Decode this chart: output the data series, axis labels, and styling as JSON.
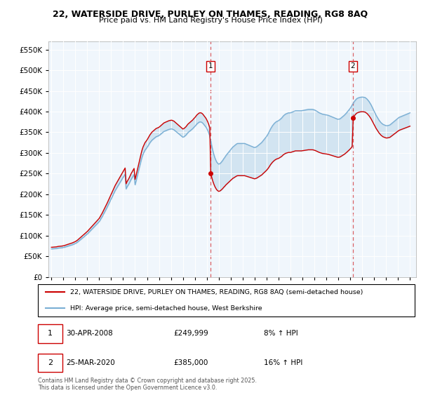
{
  "title_line1": "22, WATERSIDE DRIVE, PURLEY ON THAMES, READING, RG8 8AQ",
  "title_line2": "Price paid vs. HM Land Registry's House Price Index (HPI)",
  "legend_label1": "22, WATERSIDE DRIVE, PURLEY ON THAMES, READING, RG8 8AQ (semi-detached house)",
  "legend_label2": "HPI: Average price, semi-detached house, West Berkshire",
  "footnote": "Contains HM Land Registry data © Crown copyright and database right 2025.\nThis data is licensed under the Open Government Licence v3.0.",
  "annotation1_label": "1",
  "annotation1_date": "30-APR-2008",
  "annotation1_price": "£249,999",
  "annotation1_hpi": "8% ↑ HPI",
  "annotation2_label": "2",
  "annotation2_date": "25-MAR-2020",
  "annotation2_price": "£385,000",
  "annotation2_hpi": "16% ↑ HPI",
  "color_property": "#cc0000",
  "color_hpi": "#7aafd4",
  "color_fill": "#daeaf5",
  "ylim": [
    0,
    570000
  ],
  "yticks": [
    0,
    50000,
    100000,
    150000,
    200000,
    250000,
    300000,
    350000,
    400000,
    450000,
    500000,
    550000
  ],
  "sale_dates": [
    1995.0,
    2008.33,
    2020.23
  ],
  "sale_prices": [
    72000,
    249999,
    385000
  ],
  "vline1_x": 2008.33,
  "vline2_x": 2020.23,
  "marker1_y": 249999,
  "marker2_y": 385000,
  "xmin": 1994.75,
  "xmax": 2025.5,
  "xticks": [
    1995,
    1996,
    1997,
    1998,
    1999,
    2000,
    2001,
    2002,
    2003,
    2004,
    2005,
    2006,
    2007,
    2008,
    2009,
    2010,
    2011,
    2012,
    2013,
    2014,
    2015,
    2016,
    2017,
    2018,
    2019,
    2020,
    2021,
    2022,
    2023,
    2024,
    2025
  ],
  "hpi_dates": [
    1995.0,
    1995.083,
    1995.167,
    1995.25,
    1995.333,
    1995.417,
    1995.5,
    1995.583,
    1995.667,
    1995.75,
    1995.833,
    1995.917,
    1996.0,
    1996.083,
    1996.167,
    1996.25,
    1996.333,
    1996.417,
    1996.5,
    1996.583,
    1996.667,
    1996.75,
    1996.833,
    1996.917,
    1997.0,
    1997.083,
    1997.167,
    1997.25,
    1997.333,
    1997.417,
    1997.5,
    1997.583,
    1997.667,
    1997.75,
    1997.833,
    1997.917,
    1998.0,
    1998.083,
    1998.167,
    1998.25,
    1998.333,
    1998.417,
    1998.5,
    1998.583,
    1998.667,
    1998.75,
    1998.833,
    1998.917,
    1999.0,
    1999.083,
    1999.167,
    1999.25,
    1999.333,
    1999.417,
    1999.5,
    1999.583,
    1999.667,
    1999.75,
    1999.833,
    1999.917,
    2000.0,
    2000.083,
    2000.167,
    2000.25,
    2000.333,
    2000.417,
    2000.5,
    2000.583,
    2000.667,
    2000.75,
    2000.833,
    2000.917,
    2001.0,
    2001.083,
    2001.167,
    2001.25,
    2001.333,
    2001.417,
    2001.5,
    2001.583,
    2001.667,
    2001.75,
    2001.833,
    2001.917,
    2002.0,
    2002.083,
    2002.167,
    2002.25,
    2002.333,
    2002.417,
    2002.5,
    2002.583,
    2002.667,
    2002.75,
    2002.833,
    2002.917,
    2003.0,
    2003.083,
    2003.167,
    2003.25,
    2003.333,
    2003.417,
    2003.5,
    2003.583,
    2003.667,
    2003.75,
    2003.833,
    2003.917,
    2004.0,
    2004.083,
    2004.167,
    2004.25,
    2004.333,
    2004.417,
    2004.5,
    2004.583,
    2004.667,
    2004.75,
    2004.833,
    2004.917,
    2005.0,
    2005.083,
    2005.167,
    2005.25,
    2005.333,
    2005.417,
    2005.5,
    2005.583,
    2005.667,
    2005.75,
    2005.833,
    2005.917,
    2006.0,
    2006.083,
    2006.167,
    2006.25,
    2006.333,
    2006.417,
    2006.5,
    2006.583,
    2006.667,
    2006.75,
    2006.833,
    2006.917,
    2007.0,
    2007.083,
    2007.167,
    2007.25,
    2007.333,
    2007.417,
    2007.5,
    2007.583,
    2007.667,
    2007.75,
    2007.833,
    2007.917,
    2008.0,
    2008.083,
    2008.167,
    2008.25,
    2008.333,
    2008.417,
    2008.5,
    2008.583,
    2008.667,
    2008.75,
    2008.833,
    2008.917,
    2009.0,
    2009.083,
    2009.167,
    2009.25,
    2009.333,
    2009.417,
    2009.5,
    2009.583,
    2009.667,
    2009.75,
    2009.833,
    2009.917,
    2010.0,
    2010.083,
    2010.167,
    2010.25,
    2010.333,
    2010.417,
    2010.5,
    2010.583,
    2010.667,
    2010.75,
    2010.833,
    2010.917,
    2011.0,
    2011.083,
    2011.167,
    2011.25,
    2011.333,
    2011.417,
    2011.5,
    2011.583,
    2011.667,
    2011.75,
    2011.833,
    2011.917,
    2012.0,
    2012.083,
    2012.167,
    2012.25,
    2012.333,
    2012.417,
    2012.5,
    2012.583,
    2012.667,
    2012.75,
    2012.833,
    2012.917,
    2013.0,
    2013.083,
    2013.167,
    2013.25,
    2013.333,
    2013.417,
    2013.5,
    2013.583,
    2013.667,
    2013.75,
    2013.833,
    2013.917,
    2014.0,
    2014.083,
    2014.167,
    2014.25,
    2014.333,
    2014.417,
    2014.5,
    2014.583,
    2014.667,
    2014.75,
    2014.833,
    2014.917,
    2015.0,
    2015.083,
    2015.167,
    2015.25,
    2015.333,
    2015.417,
    2015.5,
    2015.583,
    2015.667,
    2015.75,
    2015.833,
    2015.917,
    2016.0,
    2016.083,
    2016.167,
    2016.25,
    2016.333,
    2016.417,
    2016.5,
    2016.583,
    2016.667,
    2016.75,
    2016.833,
    2016.917,
    2017.0,
    2017.083,
    2017.167,
    2017.25,
    2017.333,
    2017.417,
    2017.5,
    2017.583,
    2017.667,
    2017.75,
    2017.833,
    2017.917,
    2018.0,
    2018.083,
    2018.167,
    2018.25,
    2018.333,
    2018.417,
    2018.5,
    2018.583,
    2018.667,
    2018.75,
    2018.833,
    2018.917,
    2019.0,
    2019.083,
    2019.167,
    2019.25,
    2019.333,
    2019.417,
    2019.5,
    2019.583,
    2019.667,
    2019.75,
    2019.833,
    2019.917,
    2020.0,
    2020.083,
    2020.167,
    2020.25,
    2020.333,
    2020.417,
    2020.5,
    2020.583,
    2020.667,
    2020.75,
    2020.833,
    2020.917,
    2021.0,
    2021.083,
    2021.167,
    2021.25,
    2021.333,
    2021.417,
    2021.5,
    2021.583,
    2021.667,
    2021.75,
    2021.833,
    2021.917,
    2022.0,
    2022.083,
    2022.167,
    2022.25,
    2022.333,
    2022.417,
    2022.5,
    2022.583,
    2022.667,
    2022.75,
    2022.833,
    2022.917,
    2023.0,
    2023.083,
    2023.167,
    2023.25,
    2023.333,
    2023.417,
    2023.5,
    2023.583,
    2023.667,
    2023.75,
    2023.833,
    2023.917,
    2024.0,
    2024.083,
    2024.167,
    2024.25,
    2024.333,
    2024.417,
    2024.5,
    2024.583,
    2024.667,
    2024.75,
    2024.833,
    2024.917,
    2025.0
  ],
  "hpi_values": [
    68000,
    68200,
    68400,
    68600,
    68800,
    69000,
    69500,
    70000,
    70300,
    70500,
    70700,
    71000,
    71500,
    72000,
    72800,
    73500,
    74200,
    75000,
    75800,
    76500,
    77200,
    78000,
    79000,
    80000,
    81000,
    82500,
    84000,
    86000,
    88000,
    90000,
    92000,
    94000,
    96000,
    98000,
    100000,
    102000,
    104000,
    106500,
    109000,
    111500,
    114000,
    116500,
    119000,
    121500,
    124000,
    126500,
    129000,
    131500,
    134000,
    138000,
    142000,
    146000,
    150500,
    155000,
    159500,
    164000,
    169000,
    174000,
    179000,
    184000,
    189000,
    194000,
    199000,
    204000,
    209000,
    213000,
    217000,
    221000,
    225000,
    229000,
    233000,
    237000,
    241000,
    245000,
    249000,
    213000,
    218000,
    222000,
    226000,
    231000,
    236000,
    240000,
    244000,
    248000,
    223000,
    232000,
    242000,
    252000,
    262000,
    272000,
    281000,
    290000,
    297000,
    302000,
    307000,
    310000,
    313000,
    317000,
    321000,
    325000,
    328000,
    331000,
    333000,
    335000,
    337000,
    339000,
    340000,
    341000,
    342000,
    344000,
    346000,
    348000,
    350000,
    352000,
    353000,
    354000,
    355000,
    356000,
    357000,
    357500,
    358000,
    358000,
    357000,
    356000,
    354000,
    352000,
    350000,
    348000,
    346000,
    344000,
    342000,
    340000,
    338000,
    339000,
    341000,
    343000,
    346000,
    349000,
    351000,
    353000,
    355000,
    357000,
    359000,
    362000,
    364000,
    367000,
    370000,
    372000,
    374000,
    375000,
    375000,
    374000,
    372000,
    369000,
    366000,
    363000,
    359000,
    354000,
    348000,
    341000,
    329000,
    317000,
    306000,
    297000,
    289000,
    283000,
    278000,
    275000,
    273000,
    274000,
    276000,
    279000,
    282000,
    286000,
    289000,
    293000,
    296000,
    299000,
    302000,
    305000,
    308000,
    311000,
    314000,
    316000,
    318000,
    320000,
    322000,
    323000,
    323000,
    323000,
    323000,
    323000,
    323000,
    323000,
    323000,
    322000,
    321000,
    320000,
    319000,
    318000,
    317000,
    316000,
    315000,
    314000,
    313000,
    314000,
    315000,
    317000,
    319000,
    321000,
    323000,
    325000,
    328000,
    331000,
    334000,
    337000,
    340000,
    344000,
    348000,
    353000,
    358000,
    362000,
    366000,
    369000,
    372000,
    374000,
    376000,
    377000,
    378000,
    380000,
    382000,
    384000,
    387000,
    390000,
    392000,
    394000,
    395000,
    396000,
    397000,
    397000,
    397000,
    398000,
    399000,
    400000,
    401000,
    402000,
    402000,
    402000,
    402000,
    402000,
    402000,
    402000,
    402500,
    403000,
    403500,
    404000,
    404500,
    405000,
    405500,
    405500,
    405500,
    405500,
    405500,
    405000,
    404000,
    403000,
    401500,
    400000,
    398500,
    397000,
    396000,
    395000,
    394000,
    393500,
    393000,
    392500,
    392000,
    391500,
    391000,
    390000,
    389000,
    388000,
    387000,
    386000,
    385000,
    384000,
    383000,
    382000,
    381500,
    382000,
    383000,
    385000,
    387000,
    389000,
    391000,
    393500,
    396000,
    399000,
    402000,
    405000,
    408000,
    412000,
    416000,
    420000,
    424000,
    427000,
    430000,
    432000,
    433000,
    434000,
    434500,
    435000,
    435000,
    435000,
    434500,
    434000,
    432000,
    430000,
    427000,
    424000,
    420000,
    416000,
    411000,
    406000,
    401000,
    396000,
    391000,
    387000,
    383000,
    379000,
    376000,
    373000,
    371000,
    369000,
    368000,
    367000,
    366000,
    366000,
    366500,
    367000,
    368000,
    370000,
    372000,
    374000,
    376000,
    378000,
    380000,
    382000,
    384000,
    386000,
    387000,
    388000,
    389000,
    390000,
    391000,
    392000,
    393000,
    394000,
    395000,
    396000,
    397000
  ]
}
